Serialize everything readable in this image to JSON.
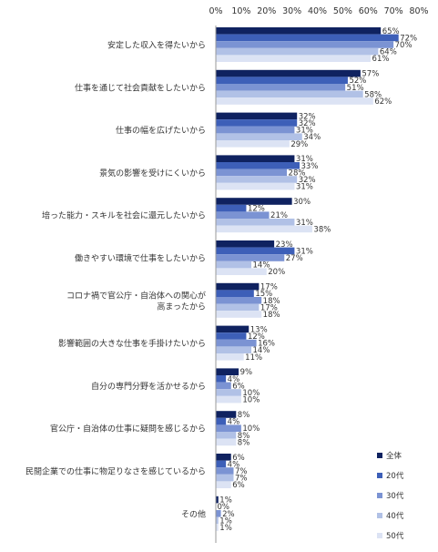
{
  "chart_data": {
    "type": "bar",
    "orientation": "horizontal",
    "xlim": [
      0,
      80
    ],
    "x_ticks": [
      "0%",
      "10%",
      "20%",
      "30%",
      "40%",
      "50%",
      "60%",
      "70%",
      "80%"
    ],
    "grid": false,
    "legend_position": "bottom-right",
    "categories": [
      [
        "安定した収入を得たいから"
      ],
      [
        "仕事を通じて社会貢献をしたいから"
      ],
      [
        "仕事の幅を広げたいから"
      ],
      [
        "景気の影響を受けにくいから"
      ],
      [
        "培った能力・スキルを社会に還元したいから"
      ],
      [
        "働きやすい環境で仕事をしたいから"
      ],
      [
        "コロナ禍で官公庁・自治体への関心が",
        "高まったから"
      ],
      [
        "影響範囲の大きな仕事を手掛けたいから"
      ],
      [
        "自分の専門分野を活かせるから"
      ],
      [
        "官公庁・自治体の仕事に疑問を感じるから"
      ],
      [
        "民間企業での仕事に物足りなさを感じているから"
      ],
      [
        "その他"
      ]
    ],
    "series": [
      {
        "name": "全体",
        "color": "#0f2260",
        "values": [
          65,
          57,
          32,
          31,
          30,
          23,
          17,
          13,
          9,
          8,
          6,
          1
        ]
      },
      {
        "name": "20代",
        "color": "#3d5fb8",
        "values": [
          72,
          52,
          32,
          33,
          12,
          31,
          15,
          12,
          4,
          4,
          4,
          0
        ]
      },
      {
        "name": "30代",
        "color": "#7b93d3",
        "values": [
          70,
          51,
          31,
          28,
          21,
          27,
          18,
          16,
          6,
          10,
          7,
          2
        ]
      },
      {
        "name": "40代",
        "color": "#b1c1e6",
        "values": [
          64,
          58,
          34,
          32,
          31,
          14,
          17,
          14,
          10,
          8,
          7,
          1
        ]
      },
      {
        "name": "50代",
        "color": "#dce3f4",
        "values": [
          61,
          62,
          29,
          31,
          38,
          20,
          18,
          11,
          10,
          8,
          6,
          1
        ]
      }
    ]
  }
}
